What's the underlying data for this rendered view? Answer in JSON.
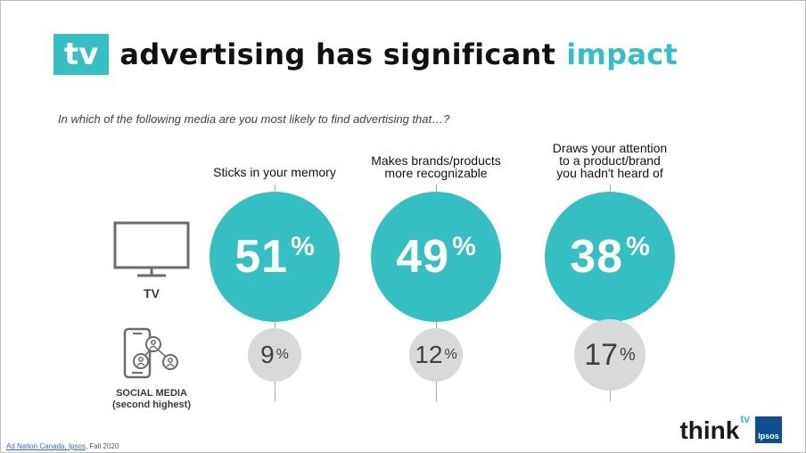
{
  "title": {
    "box": "tv",
    "main": "advertising has significant",
    "accent": "impact"
  },
  "question": "In which of the following media are you most likely to find advertising that…?",
  "media": {
    "tv_label": "TV",
    "social_label_1": "SOCIAL MEDIA",
    "social_label_2": "(second highest)"
  },
  "chart_data": {
    "type": "table",
    "columns": [
      "Sticks in your memory",
      "Makes brands/products more recognizable",
      "Draws your attention to a product/brand you hadn't heard of"
    ],
    "column_label_lines": [
      [
        "Sticks in your memory"
      ],
      [
        "Makes brands/products",
        "more recognizable"
      ],
      [
        "Draws your attention",
        "to a product/brand",
        "you hadn't heard of"
      ]
    ],
    "series": [
      {
        "name": "TV",
        "values": [
          51,
          49,
          38
        ]
      },
      {
        "name": "SOCIAL MEDIA (second highest)",
        "values": [
          9,
          12,
          17
        ]
      }
    ],
    "unit": "%"
  },
  "source": {
    "link": "Ad Nation Canada, Ipsos",
    "rest": ", Fall 2020"
  },
  "logo": {
    "think": "think",
    "tv": "tv",
    "ipsos": "Ipsos"
  },
  "colors": {
    "accent": "#35bfc3",
    "small": "#d9d9d9",
    "dark": "#111111"
  }
}
